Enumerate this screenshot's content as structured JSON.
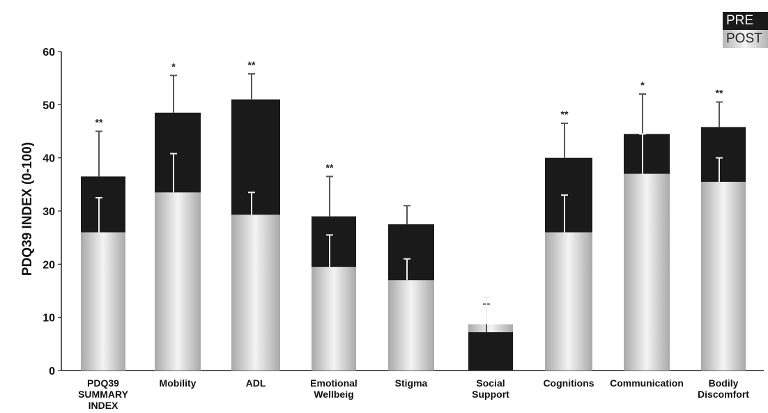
{
  "chart_data": {
    "type": "bar",
    "ylabel": "PDQ39 INDEX (0-100)",
    "ylim": [
      0,
      60
    ],
    "yticks": [
      0,
      10,
      20,
      30,
      40,
      50,
      60
    ],
    "categories": [
      [
        "PDQ39",
        "SUMMARY",
        "INDEX"
      ],
      [
        "Mobility"
      ],
      [
        "ADL"
      ],
      [
        "Emotional",
        "Wellbeig"
      ],
      [
        "Stigma"
      ],
      [
        "Social",
        "Support"
      ],
      [
        "Cognitions"
      ],
      [
        "Communication"
      ],
      [
        "Bodily",
        "Discomfort"
      ]
    ],
    "series": [
      {
        "name": "PRE",
        "values": [
          36.5,
          48.5,
          51,
          29,
          27.5,
          7.2,
          40,
          44.5,
          45.8
        ],
        "errors": [
          45,
          55.5,
          55.8,
          36.5,
          31,
          12.5,
          46.5,
          52,
          50.5
        ]
      },
      {
        "name": "POST",
        "values": [
          26,
          33.5,
          29.3,
          19.5,
          17,
          8.7,
          26,
          37,
          35.5
        ],
        "errors": [
          32.5,
          40.8,
          33.5,
          25.5,
          21,
          13.8,
          33,
          44.5,
          40
        ]
      }
    ],
    "significance": [
      "**",
      "*",
      "**",
      "**",
      "",
      "",
      "**",
      "*",
      "**"
    ],
    "legend": {
      "position": "top-right",
      "items": [
        "PRE",
        "POST"
      ]
    },
    "colors": {
      "pre": "#1a1a1a",
      "post_light": "#f4f4f4",
      "post_dark": "#a9a9a9"
    }
  }
}
